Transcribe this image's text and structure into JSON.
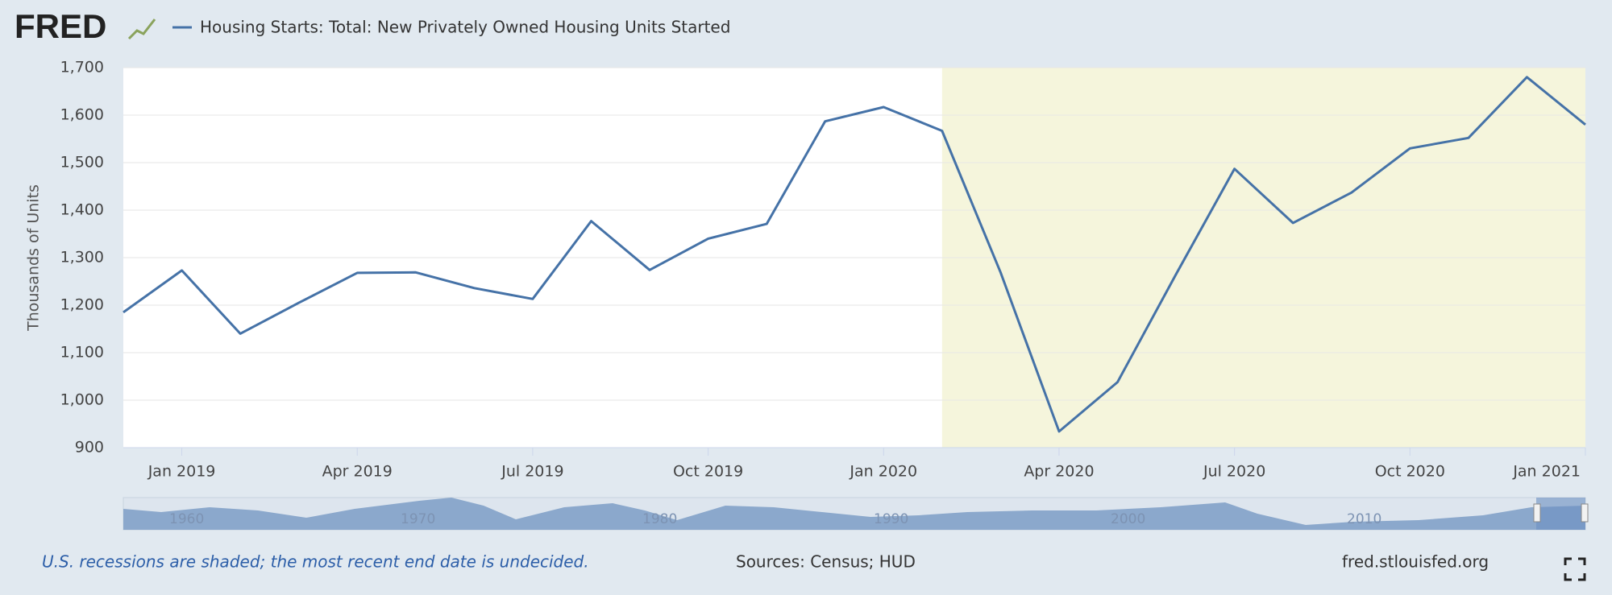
{
  "chart_data": {
    "type": "line",
    "brand": "FRED",
    "y_label": "Thousands of Units",
    "x": [
      "2018-12",
      "2019-01",
      "2019-02",
      "2019-03",
      "2019-04",
      "2019-05",
      "2019-06",
      "2019-07",
      "2019-08",
      "2019-09",
      "2019-10",
      "2019-11",
      "2019-12",
      "2020-01",
      "2020-02",
      "2020-03",
      "2020-04",
      "2020-05",
      "2020-06",
      "2020-07",
      "2020-08",
      "2020-09",
      "2020-10",
      "2020-11",
      "2020-12",
      "2021-01"
    ],
    "series": [
      {
        "name": "Housing Starts: Total: New Privately Owned Housing Units Started",
        "color": "#4572a7",
        "values": [
          1185,
          1273,
          1140,
          1205,
          1268,
          1269,
          1236,
          1213,
          1377,
          1274,
          1340,
          1371,
          1587,
          1617,
          1567,
          1269,
          934,
          1038,
          1265,
          1487,
          1373,
          1437,
          1530,
          1552,
          1680,
          1580
        ]
      }
    ],
    "xlim": [
      "2018-12",
      "2021-01"
    ],
    "xticks": [
      {
        "value": "2019-01",
        "label": "Jan 2019"
      },
      {
        "value": "2019-04",
        "label": "Apr 2019"
      },
      {
        "value": "2019-07",
        "label": "Jul 2019"
      },
      {
        "value": "2019-10",
        "label": "Oct 2019"
      },
      {
        "value": "2020-01",
        "label": "Jan 2020"
      },
      {
        "value": "2020-04",
        "label": "Apr 2020"
      },
      {
        "value": "2020-07",
        "label": "Jul 2020"
      },
      {
        "value": "2020-10",
        "label": "Oct 2020"
      },
      {
        "value": "2021-01",
        "label": "Jan 2021"
      }
    ],
    "ylim": [
      900,
      1700
    ],
    "yticks": [
      900,
      {
        "value": 1000,
        "label": "1,000"
      },
      {
        "value": 1100,
        "label": "1,100"
      },
      {
        "value": 1200,
        "label": "1,200"
      },
      {
        "value": 1300,
        "label": "1,300"
      },
      {
        "value": 1400,
        "label": "1,400"
      },
      {
        "value": 1500,
        "label": "1,500"
      },
      {
        "value": 1600,
        "label": "1,600"
      },
      {
        "value": 1700,
        "label": "1,700"
      }
    ],
    "grid": true,
    "recession": {
      "start": "2020-02",
      "end": "2021-01",
      "color": "#f5f5dc"
    },
    "navigator_labels": [
      "1960",
      "1970",
      "1980",
      "1990",
      "2000",
      "2010"
    ],
    "note": "U.S. recessions are shaded; the most recent end date is undecided.",
    "sources": "Sources: Census; HUD",
    "site": "fred.stlouisfed.org"
  }
}
